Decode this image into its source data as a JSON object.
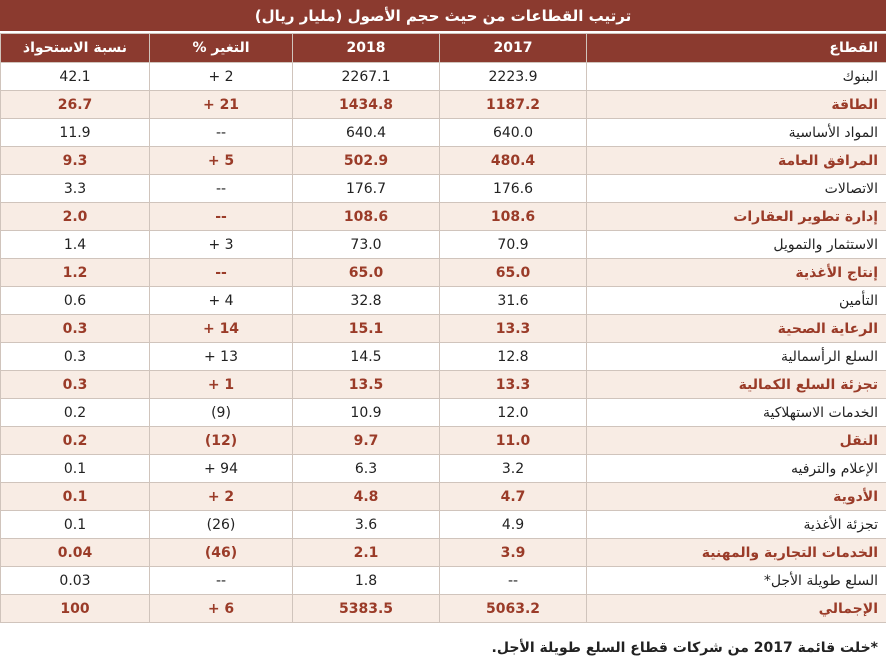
{
  "chart_data": {
    "type": "table",
    "title": "ترتيب القطاعات من حيث حجم الأصول (مليار ريال)",
    "columns": {
      "sector": "القطاع",
      "y2017": "2017",
      "y2018": "2018",
      "change": "التغير %",
      "share": "نسبة الاستحواذ"
    },
    "rows": [
      {
        "sector": "البنوك",
        "y2017": "2223.9",
        "y2018": "2267.1",
        "change": "2 +",
        "share": "42.1"
      },
      {
        "sector": "الطاقة",
        "y2017": "1187.2",
        "y2018": "1434.8",
        "change": "21 +",
        "share": "26.7"
      },
      {
        "sector": "المواد الأساسية",
        "y2017": "640.0",
        "y2018": "640.4",
        "change": "--",
        "share": "11.9"
      },
      {
        "sector": "المرافق العامة",
        "y2017": "480.4",
        "y2018": "502.9",
        "change": "5 +",
        "share": "9.3"
      },
      {
        "sector": "الاتصالات",
        "y2017": "176.6",
        "y2018": "176.7",
        "change": "--",
        "share": "3.3"
      },
      {
        "sector": "إدارة تطوير العقارات",
        "y2017": "108.6",
        "y2018": "108.6",
        "change": "--",
        "share": "2.0"
      },
      {
        "sector": "الاستثمار والتمويل",
        "y2017": "70.9",
        "y2018": "73.0",
        "change": "3 +",
        "share": "1.4"
      },
      {
        "sector": "إنتاج الأغذية",
        "y2017": "65.0",
        "y2018": "65.0",
        "change": "--",
        "share": "1.2"
      },
      {
        "sector": "التأمين",
        "y2017": "31.6",
        "y2018": "32.8",
        "change": "4 +",
        "share": "0.6"
      },
      {
        "sector": "الرعاية الصحية",
        "y2017": "13.3",
        "y2018": "15.1",
        "change": "14 +",
        "share": "0.3"
      },
      {
        "sector": "السلع الرأسمالية",
        "y2017": "12.8",
        "y2018": "14.5",
        "change": "13 +",
        "share": "0.3"
      },
      {
        "sector": "تجزئة السلع الكمالية",
        "y2017": "13.3",
        "y2018": "13.5",
        "change": "1 +",
        "share": "0.3"
      },
      {
        "sector": "الخدمات الاستهلاكية",
        "y2017": "12.0",
        "y2018": "10.9",
        "change": "(9)",
        "share": "0.2"
      },
      {
        "sector": "النقل",
        "y2017": "11.0",
        "y2018": "9.7",
        "change": "(12)",
        "share": "0.2"
      },
      {
        "sector": "الإعلام والترفيه",
        "y2017": "3.2",
        "y2018": "6.3",
        "change": "94 +",
        "share": "0.1"
      },
      {
        "sector": "الأدوية",
        "y2017": "4.7",
        "y2018": "4.8",
        "change": "2 +",
        "share": "0.1"
      },
      {
        "sector": "تجزئة الأغذية",
        "y2017": "4.9",
        "y2018": "3.6",
        "change": "(26)",
        "share": "0.1"
      },
      {
        "sector": "الخدمات التجارية والمهنية",
        "y2017": "3.9",
        "y2018": "2.1",
        "change": "(46)",
        "share": "0.04"
      },
      {
        "sector": "السلع طويلة الأجل*",
        "y2017": "--",
        "y2018": "1.8",
        "change": "--",
        "share": "0.03"
      },
      {
        "sector": "الإجمالي",
        "y2017": "5063.2",
        "y2018": "5383.5",
        "change": "6 +",
        "share": "100"
      }
    ],
    "footnote": "*خلت قائمة 2017 من شركات قطاع السلع طويلة الأجل."
  }
}
